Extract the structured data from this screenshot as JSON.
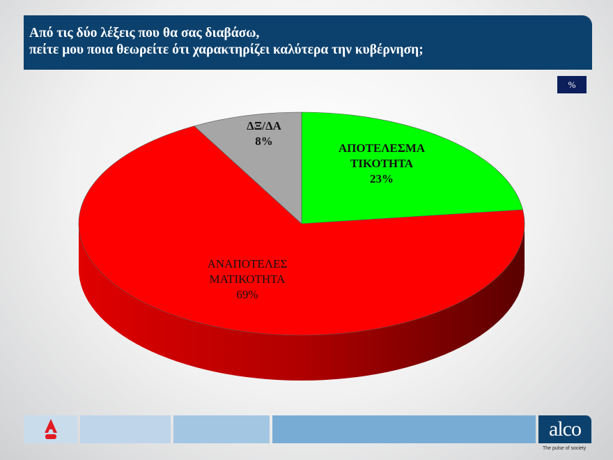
{
  "title": "Από τις δύο λέξεις που θα σας διαβάσω,\nπείτε μου ποια θεωρείτε ότι χαρακτηρίζει καλύτερα την κυβέρνηση;",
  "unit_badge": "%",
  "chart_data": {
    "type": "pie",
    "style": "3d",
    "title": "Από τις δύο λέξεις που θα σας διαβάσω, πείτε μου ποια θεωρείτε ότι χαρακτηρίζει καλύτερα την κυβέρνηση;",
    "slices": [
      {
        "label": "ΑΠΟΤΕΛΕΣΜΑ ΤΙΚΟΤΗΤΑ",
        "label_lines": [
          "ΑΠΟΤΕΛΕΣΜΑ",
          "ΤΙΚΟΤΗΤΑ"
        ],
        "value": 23,
        "value_label": "23%",
        "color": "#00ff00"
      },
      {
        "label": "ΑΝΑΠΟΤΕΛΕΣ ΜΑΤΙΚΟΤΗΤΑ",
        "label_lines": [
          "ΑΝΑΠΟΤΕΛΕΣ",
          "ΜΑΤΙΚΟΤΗΤΑ"
        ],
        "value": 69,
        "value_label": "69%",
        "color": "#ff0000"
      },
      {
        "label": "ΔΞ/ΔΑ",
        "label_lines": [
          "ΔΞ/ΔΑ"
        ],
        "value": 8,
        "value_label": "8%",
        "color": "#a6a6a6"
      }
    ]
  },
  "footer": {
    "brand": "alco",
    "tagline": "The pulse of society",
    "news_logo": "ALPHA NEWS"
  }
}
